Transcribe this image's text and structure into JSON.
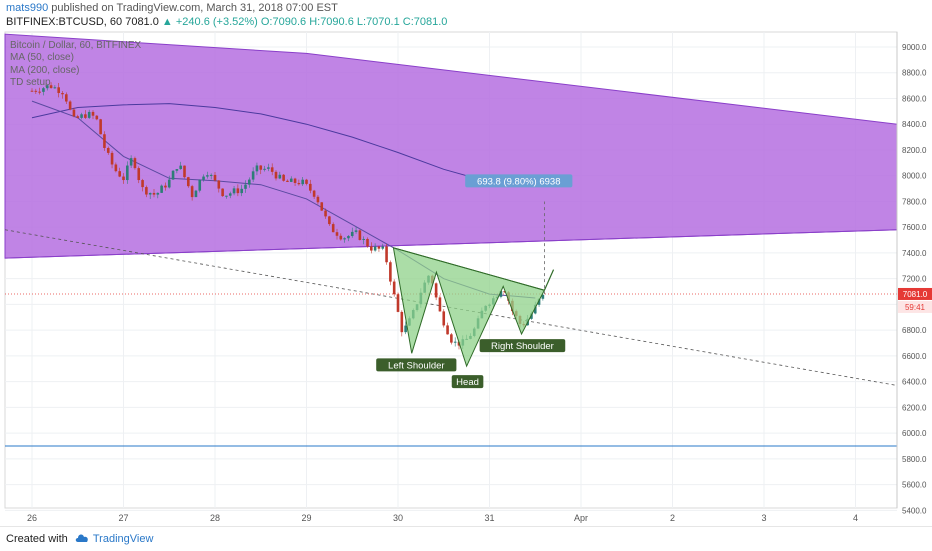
{
  "header": {
    "author": "mats990",
    "published_text": "published on TradingView.com, March 31, 2018 07:00 EST",
    "symbol": "BITFINEX:BTCUSD, 60",
    "last": "7081.0",
    "change": "▲ +240.6 (+3.52%)",
    "ohlc": "O:7090.6 H:7090.6 L:7070.1 C:7081.0"
  },
  "legend": {
    "title": "Bitcoin / Dollar, 60, BITFINEX",
    "ma50": "MA (50, close)",
    "ma200": "MA (200, close)",
    "td": "TD setup"
  },
  "annotations": {
    "measure": "693.8 (9.80%) 6938",
    "left_shoulder": "Left Shoulder",
    "head": "Head",
    "right_shoulder": "Right Shoulder"
  },
  "price_badges": {
    "last_price": "7081.0",
    "countdown": "59:41"
  },
  "footer": {
    "created_with": "Created with",
    "brand": "TradingView"
  },
  "colors": {
    "channel_fill": "#b56fe0",
    "channel_stroke": "#8a3fc9",
    "pattern_fill": "#8fd18a",
    "pattern_stroke": "#2f6b28",
    "up_candle": "#2d7d77",
    "down_candle": "#c0392b",
    "support_line": "#2a78c8",
    "measure_label": "#6a9fd4",
    "last_price": "#e53935"
  },
  "chart_data": {
    "type": "candlestick",
    "title": "Bitcoin / Dollar, 60, BITFINEX",
    "x_ticks": [
      "26",
      "27",
      "28",
      "29",
      "30",
      "31",
      "Apr",
      "2",
      "3",
      "4"
    ],
    "y_ticks": [
      "9000.0",
      "8800.0",
      "8600.0",
      "8400.0",
      "8200.0",
      "8000.0",
      "7800.0",
      "7600.0",
      "7400.0",
      "7200.0",
      "7000.0",
      "6800.0",
      "6600.0",
      "6400.0",
      "6200.0",
      "6000.0",
      "5800.0",
      "5600.0",
      "5400.0"
    ],
    "ylim": [
      5400,
      9100
    ],
    "price_path": [
      [
        0.0,
        8660
      ],
      [
        0.2,
        8700
      ],
      [
        0.35,
        8650
      ],
      [
        0.45,
        8430
      ],
      [
        0.6,
        8480
      ],
      [
        0.7,
        8450
      ],
      [
        0.8,
        8200
      ],
      [
        0.9,
        8050
      ],
      [
        1.0,
        7980
      ],
      [
        1.1,
        8150
      ],
      [
        1.2,
        7900
      ],
      [
        1.35,
        7850
      ],
      [
        1.5,
        7960
      ],
      [
        1.6,
        8100
      ],
      [
        1.75,
        7850
      ],
      [
        1.9,
        8050
      ],
      [
        2.0,
        7950
      ],
      [
        2.1,
        7850
      ],
      [
        2.3,
        7900
      ],
      [
        2.45,
        8050
      ],
      [
        2.6,
        8050
      ],
      [
        2.75,
        7950
      ],
      [
        2.85,
        7950
      ],
      [
        2.95,
        7950
      ],
      [
        3.1,
        7850
      ],
      [
        3.25,
        7600
      ],
      [
        3.4,
        7520
      ],
      [
        3.55,
        7550
      ],
      [
        3.7,
        7440
      ],
      [
        3.85,
        7420
      ],
      [
        3.95,
        7090
      ],
      [
        4.05,
        6780
      ],
      [
        4.15,
        6900
      ],
      [
        4.25,
        7100
      ],
      [
        4.35,
        7250
      ],
      [
        4.45,
        6950
      ],
      [
        4.6,
        6700
      ],
      [
        4.72,
        6700
      ],
      [
        4.85,
        6820
      ],
      [
        4.95,
        7000
      ],
      [
        5.05,
        7050
      ],
      [
        5.15,
        7150
      ],
      [
        5.25,
        6950
      ],
      [
        5.35,
        6830
      ],
      [
        5.45,
        6920
      ],
      [
        5.55,
        7040
      ],
      [
        5.62,
        7081
      ]
    ],
    "ma50": [
      [
        0.0,
        8580
      ],
      [
        0.5,
        8450
      ],
      [
        1.0,
        8150
      ],
      [
        1.5,
        7980
      ],
      [
        2.0,
        7960
      ],
      [
        2.5,
        7930
      ],
      [
        3.0,
        7820
      ],
      [
        3.5,
        7620
      ],
      [
        4.0,
        7420
      ],
      [
        4.5,
        7200
      ],
      [
        5.0,
        7080
      ],
      [
        5.5,
        7050
      ]
    ],
    "ma200": [
      [
        0.0,
        8450
      ],
      [
        0.5,
        8530
      ],
      [
        1.0,
        8550
      ],
      [
        1.5,
        8560
      ],
      [
        2.0,
        8530
      ],
      [
        2.5,
        8480
      ],
      [
        3.0,
        8400
      ],
      [
        3.5,
        8300
      ],
      [
        4.0,
        8180
      ],
      [
        4.5,
        8050
      ],
      [
        5.0,
        7950
      ],
      [
        5.5,
        7980
      ]
    ],
    "channel": {
      "upper_start": 9000,
      "upper_end": 8400,
      "lower_start": 7360,
      "lower_end": 7580
    },
    "dashed_trend": {
      "start": 7580,
      "end": 6370
    },
    "support_level": 5900,
    "pattern_points": [
      {
        "label": "start",
        "x": 3.95,
        "y": 7440
      },
      {
        "label": "Left Shoulder",
        "x": 4.15,
        "y": 6620
      },
      {
        "label": "peak1",
        "x": 4.42,
        "y": 7250
      },
      {
        "label": "Head",
        "x": 4.75,
        "y": 6520
      },
      {
        "label": "peak2",
        "x": 5.15,
        "y": 7140
      },
      {
        "label": "Right Shoulder",
        "x": 5.35,
        "y": 6770
      },
      {
        "label": "end",
        "x": 5.6,
        "y": 7110
      },
      {
        "label": "target",
        "x": 5.7,
        "y": 7270
      }
    ],
    "measure_projection": {
      "from": 7080,
      "to": 7800,
      "text": "693.8 (9.80%) 6938"
    },
    "last_price": 7081.0
  }
}
